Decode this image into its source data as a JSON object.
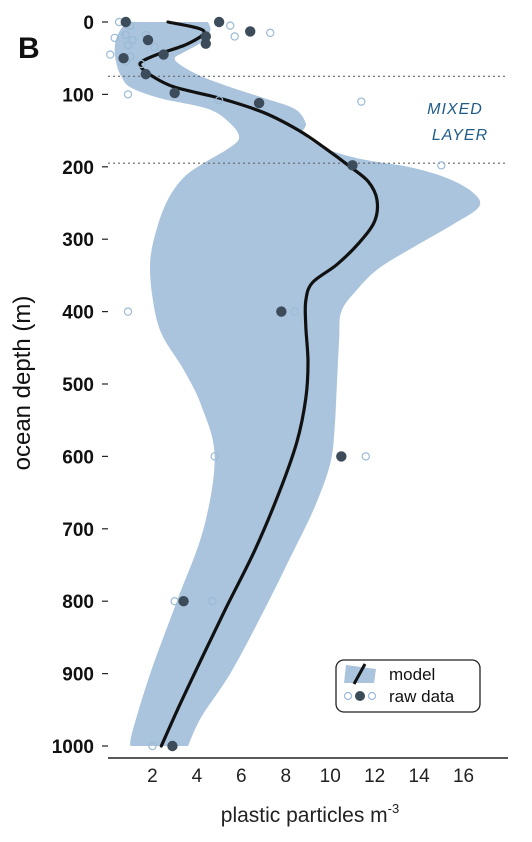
{
  "panel_label": "B",
  "chart_data": {
    "type": "line",
    "xlabel": "plastic particles m",
    "xlabel_sup": "-3",
    "ylabel": "ocean depth (m)",
    "xlim": [
      0,
      18
    ],
    "ylim": [
      0,
      1000
    ],
    "y_inverted": true,
    "x_ticks": [
      2,
      4,
      6,
      8,
      10,
      12,
      14,
      16
    ],
    "y_ticks": [
      0,
      100,
      200,
      300,
      400,
      500,
      600,
      700,
      800,
      900,
      1000
    ],
    "grid": false,
    "legend_position": "bottom-right",
    "mixed_layer_lines": [
      75,
      195
    ],
    "annotation": [
      "MIXED",
      "LAYER"
    ],
    "colors": {
      "band": "#a9c4dc",
      "line": "#111111",
      "raw_filled": "#3c4c5a",
      "raw_open": "#9bbad6",
      "annotation": "#1f5c8a"
    },
    "series": [
      {
        "name": "model",
        "kind": "line",
        "points": [
          [
            2.7,
            0
          ],
          [
            4.3,
            12
          ],
          [
            3.6,
            30
          ],
          [
            2.2,
            45
          ],
          [
            1.5,
            55
          ],
          [
            1.5,
            63
          ],
          [
            2.0,
            75
          ],
          [
            3.0,
            90
          ],
          [
            5.0,
            105
          ],
          [
            7.0,
            125
          ],
          [
            8.6,
            150
          ],
          [
            9.8,
            175
          ],
          [
            10.9,
            200
          ],
          [
            11.7,
            220
          ],
          [
            12.1,
            245
          ],
          [
            12.0,
            275
          ],
          [
            11.3,
            305
          ],
          [
            10.3,
            335
          ],
          [
            9.2,
            360
          ],
          [
            8.9,
            385
          ],
          [
            8.9,
            420
          ],
          [
            9.0,
            470
          ],
          [
            8.9,
            520
          ],
          [
            8.5,
            580
          ],
          [
            7.7,
            650
          ],
          [
            6.6,
            730
          ],
          [
            5.3,
            810
          ],
          [
            4.2,
            880
          ],
          [
            3.2,
            945
          ],
          [
            2.4,
            1000
          ]
        ]
      },
      {
        "name": "model band",
        "kind": "band",
        "upper": [
          [
            4.5,
            0
          ],
          [
            4.6,
            12
          ],
          [
            4.2,
            28
          ],
          [
            3.4,
            42
          ],
          [
            3.0,
            50
          ],
          [
            3.3,
            60
          ],
          [
            4.2,
            75
          ],
          [
            5.5,
            90
          ],
          [
            7.0,
            105
          ],
          [
            8.4,
            120
          ],
          [
            8.9,
            140
          ],
          [
            8.8,
            155
          ],
          [
            9.8,
            175
          ],
          [
            11.5,
            190
          ],
          [
            13.5,
            200
          ],
          [
            15.2,
            215
          ],
          [
            16.4,
            235
          ],
          [
            16.7,
            255
          ],
          [
            15.5,
            280
          ],
          [
            13.8,
            310
          ],
          [
            12.2,
            340
          ],
          [
            11.2,
            370
          ],
          [
            10.5,
            400
          ],
          [
            10.4,
            440
          ],
          [
            10.3,
            500
          ],
          [
            10.2,
            560
          ],
          [
            10.0,
            610
          ],
          [
            9.3,
            670
          ],
          [
            8.2,
            740
          ],
          [
            6.9,
            820
          ],
          [
            5.5,
            900
          ],
          [
            4.2,
            960
          ],
          [
            3.6,
            1000
          ]
        ],
        "lower": [
          [
            0.8,
            0
          ],
          [
            0.4,
            20
          ],
          [
            0.3,
            40
          ],
          [
            0.4,
            60
          ],
          [
            0.6,
            75
          ],
          [
            1.0,
            90
          ],
          [
            2.3,
            105
          ],
          [
            4.5,
            120
          ],
          [
            5.5,
            140
          ],
          [
            5.9,
            160
          ],
          [
            5.4,
            175
          ],
          [
            4.3,
            195
          ],
          [
            3.4,
            215
          ],
          [
            2.7,
            245
          ],
          [
            2.2,
            285
          ],
          [
            1.9,
            330
          ],
          [
            2.0,
            380
          ],
          [
            2.4,
            430
          ],
          [
            3.4,
            480
          ],
          [
            4.2,
            530
          ],
          [
            4.8,
            600
          ],
          [
            4.3,
            700
          ],
          [
            3.1,
            800
          ],
          [
            1.9,
            900
          ],
          [
            1.1,
            980
          ],
          [
            1.0,
            1000
          ]
        ]
      },
      {
        "name": "raw data",
        "kind": "scatter",
        "filled": [
          [
            0.8,
            0
          ],
          [
            5.0,
            0
          ],
          [
            6.4,
            13
          ],
          [
            4.4,
            20
          ],
          [
            1.8,
            25
          ],
          [
            4.4,
            30
          ],
          [
            2.5,
            45
          ],
          [
            0.7,
            50
          ],
          [
            1.7,
            72
          ],
          [
            3.0,
            98
          ],
          [
            6.8,
            112
          ],
          [
            11.0,
            198
          ],
          [
            7.8,
            400
          ],
          [
            10.5,
            600
          ],
          [
            3.4,
            800
          ],
          [
            2.9,
            1000
          ]
        ],
        "open": [
          [
            0.5,
            0
          ],
          [
            1.0,
            5
          ],
          [
            5.5,
            5
          ],
          [
            7.3,
            15
          ],
          [
            0.8,
            18
          ],
          [
            1.7,
            18
          ],
          [
            5.7,
            20
          ],
          [
            0.3,
            22
          ],
          [
            1.1,
            25
          ],
          [
            0.9,
            32
          ],
          [
            2.1,
            35
          ],
          [
            0.1,
            45
          ],
          [
            1.0,
            48
          ],
          [
            0.8,
            55
          ],
          [
            1.5,
            58
          ],
          [
            0.9,
            100
          ],
          [
            5.0,
            108
          ],
          [
            11.4,
            110
          ],
          [
            15.0,
            198
          ],
          [
            0.9,
            400
          ],
          [
            8.4,
            400
          ],
          [
            4.8,
            600
          ],
          [
            11.6,
            600
          ],
          [
            3.0,
            800
          ],
          [
            4.7,
            800
          ],
          [
            2.0,
            1000
          ]
        ]
      }
    ]
  }
}
